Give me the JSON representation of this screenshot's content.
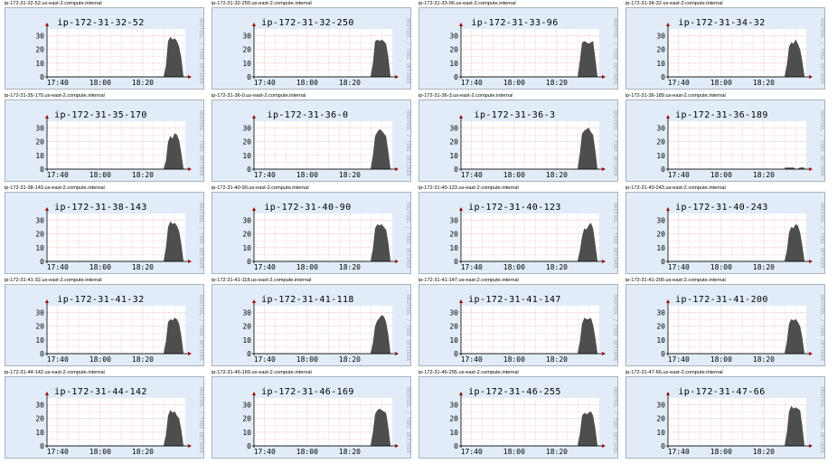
{
  "colors": {
    "background": "#e1ecf8",
    "plot": "#ffffff",
    "grid": "#f7b4b4",
    "area": "#4e4e4e",
    "axis": "#a00000"
  },
  "watermark": "RRDTOOL / TOBI OETIKER",
  "graphs": [
    {
      "caption": "ip-172-31-32-52.us-east-2.compute.internal",
      "title": "ip-172-31-32-52"
    },
    {
      "caption": "ip-172-31-32-250.us-east-2.compute.internal",
      "title": "ip-172-31-32-250"
    },
    {
      "caption": "ip-172-31-33-96.us-east-2.compute.internal",
      "title": "ip-172-31-33-96"
    },
    {
      "caption": "ip-172-31-34-32.us-east-2.compute.internal",
      "title": "ip-172-31-34-32"
    },
    {
      "caption": "ip-172-31-35-170.us-east-2.compute.internal",
      "title": "ip-172-31-35-170"
    },
    {
      "caption": "ip-172-31-36-0.us-east-2.compute.internal",
      "title": "ip-172-31-36-0"
    },
    {
      "caption": "ip-172-31-36-3.us-east-2.compute.internal",
      "title": "ip-172-31-36-3"
    },
    {
      "caption": "ip-172-31-36-189.us-east-2.compute.internal",
      "title": "ip-172-31-36-189"
    },
    {
      "caption": "ip-172-31-38-143.us-east-2.compute.internal",
      "title": "ip-172-31-38-143"
    },
    {
      "caption": "ip-172-31-40-90.us-east-2.compute.internal",
      "title": "ip-172-31-40-90"
    },
    {
      "caption": "ip-172-31-40-123.us-east-2.compute.internal",
      "title": "ip-172-31-40-123"
    },
    {
      "caption": "ip-172-31-40-243.us-east-2.compute.internal",
      "title": "ip-172-31-40-243"
    },
    {
      "caption": "ip-172-31-41-32.us-east-2.compute.internal",
      "title": "ip-172-31-41-32"
    },
    {
      "caption": "ip-172-31-41-118.us-east-2.compute.internal",
      "title": "ip-172-31-41-118"
    },
    {
      "caption": "ip-172-31-41-147.us-east-2.compute.internal",
      "title": "ip-172-31-41-147"
    },
    {
      "caption": "ip-172-31-41-200.us-east-2.compute.internal",
      "title": "ip-172-31-41-200"
    },
    {
      "caption": "ip-172-31-44-142.us-east-2.compute.internal",
      "title": "ip-172-31-44-142"
    },
    {
      "caption": "ip-172-31-46-169.us-east-2.compute.internal",
      "title": "ip-172-31-46-169"
    },
    {
      "caption": "ip-172-31-46-255.us-east-2.compute.internal",
      "title": "ip-172-31-46-255"
    },
    {
      "caption": "ip-172-31-47-66.us-east-2.compute.internal",
      "title": "ip-172-31-47-66"
    }
  ],
  "chart_data": [
    {
      "type": "area",
      "title": "ip-172-31-32-52",
      "x": [
        "18:30",
        "18:31",
        "18:32",
        "18:33",
        "18:34",
        "18:35",
        "18:36",
        "18:37",
        "18:38",
        "18:39"
      ],
      "y": [
        1,
        8,
        26,
        29,
        27,
        28,
        26,
        22,
        14,
        1
      ],
      "x_ticks": [
        "17:40",
        "18:00",
        "18:20"
      ],
      "y_ticks": [
        0,
        10,
        20,
        30
      ],
      "ylim": [
        0,
        35
      ]
    },
    {
      "type": "area",
      "title": "ip-172-31-32-250",
      "x": [
        "18:30",
        "18:31",
        "18:32",
        "18:33",
        "18:34",
        "18:35",
        "18:36",
        "18:37",
        "18:38",
        "18:39"
      ],
      "y": [
        1,
        10,
        26,
        27,
        26,
        27,
        26,
        24,
        15,
        1
      ],
      "x_ticks": [
        "17:40",
        "18:00",
        "18:20"
      ],
      "y_ticks": [
        0,
        10,
        20,
        30
      ],
      "ylim": [
        0,
        35
      ]
    },
    {
      "type": "area",
      "title": "ip-172-31-33-96",
      "x": [
        "18:30",
        "18:31",
        "18:32",
        "18:33",
        "18:34",
        "18:35",
        "18:36",
        "18:37",
        "18:38",
        "18:39"
      ],
      "y": [
        1,
        12,
        25,
        26,
        25,
        24,
        25,
        26,
        14,
        1
      ],
      "x_ticks": [
        "17:40",
        "18:00",
        "18:20"
      ],
      "y_ticks": [
        0,
        10,
        20,
        30
      ],
      "ylim": [
        0,
        35
      ]
    },
    {
      "type": "area",
      "title": "ip-172-31-34-32",
      "x": [
        "18:30",
        "18:31",
        "18:32",
        "18:33",
        "18:34",
        "18:35",
        "18:36",
        "18:37",
        "18:38",
        "18:39"
      ],
      "y": [
        1,
        9,
        22,
        25,
        24,
        27,
        24,
        20,
        12,
        1
      ],
      "x_ticks": [
        "17:40",
        "18:00",
        "18:20"
      ],
      "y_ticks": [
        0,
        10,
        20,
        30
      ],
      "ylim": [
        0,
        35
      ]
    },
    {
      "type": "area",
      "title": "ip-172-31-35-170",
      "x": [
        "18:30",
        "18:31",
        "18:32",
        "18:33",
        "18:34",
        "18:35",
        "18:36",
        "18:37",
        "18:38",
        "18:39"
      ],
      "y": [
        1,
        6,
        20,
        24,
        22,
        26,
        25,
        21,
        12,
        1
      ],
      "x_ticks": [
        "17:40",
        "18:00",
        "18:20"
      ],
      "y_ticks": [
        0,
        10,
        20,
        30
      ],
      "ylim": [
        0,
        35
      ]
    },
    {
      "type": "area",
      "title": "ip-172-31-36-0",
      "x": [
        "18:30",
        "18:31",
        "18:32",
        "18:33",
        "18:34",
        "18:35",
        "18:36",
        "18:37",
        "18:38",
        "18:39"
      ],
      "y": [
        1,
        10,
        24,
        27,
        29,
        28,
        26,
        24,
        13,
        1
      ],
      "x_ticks": [
        "17:40",
        "18:00",
        "18:20"
      ],
      "y_ticks": [
        0,
        10,
        20,
        30
      ],
      "ylim": [
        0,
        35
      ]
    },
    {
      "type": "area",
      "title": "ip-172-31-36-3",
      "x": [
        "18:30",
        "18:31",
        "18:32",
        "18:33",
        "18:34",
        "18:35",
        "18:36",
        "18:37",
        "18:38",
        "18:39"
      ],
      "y": [
        1,
        12,
        26,
        28,
        29,
        30,
        27,
        25,
        14,
        1
      ],
      "x_ticks": [
        "17:40",
        "18:00",
        "18:20"
      ],
      "y_ticks": [
        0,
        10,
        20,
        30
      ],
      "ylim": [
        0,
        35
      ]
    },
    {
      "type": "area",
      "title": "ip-172-31-36-189",
      "x": [
        "18:30",
        "18:31",
        "18:32",
        "18:33",
        "18:34",
        "18:35",
        "18:36",
        "18:37",
        "18:38",
        "18:39"
      ],
      "y": [
        1,
        1,
        1,
        1,
        1,
        0,
        0,
        1,
        1,
        1
      ],
      "x_ticks": [
        "17:40",
        "18:00",
        "18:20"
      ],
      "y_ticks": [
        0,
        10,
        20,
        30
      ],
      "ylim": [
        0,
        35
      ]
    },
    {
      "type": "area",
      "title": "ip-172-31-38-143",
      "x": [
        "18:30",
        "18:31",
        "18:32",
        "18:33",
        "18:34",
        "18:35",
        "18:36",
        "18:37",
        "18:38",
        "18:39"
      ],
      "y": [
        1,
        10,
        25,
        29,
        27,
        28,
        26,
        22,
        13,
        1
      ],
      "x_ticks": [
        "17:40",
        "18:00",
        "18:20"
      ],
      "y_ticks": [
        0,
        10,
        20,
        30
      ],
      "ylim": [
        0,
        35
      ]
    },
    {
      "type": "area",
      "title": "ip-172-31-40-90",
      "x": [
        "18:30",
        "18:31",
        "18:32",
        "18:33",
        "18:34",
        "18:35",
        "18:36",
        "18:37",
        "18:38",
        "18:39"
      ],
      "y": [
        1,
        9,
        24,
        27,
        26,
        27,
        25,
        23,
        14,
        1
      ],
      "x_ticks": [
        "17:40",
        "18:00",
        "18:20"
      ],
      "y_ticks": [
        0,
        10,
        20,
        30
      ],
      "ylim": [
        0,
        35
      ]
    },
    {
      "type": "area",
      "title": "ip-172-31-40-123",
      "x": [
        "18:30",
        "18:31",
        "18:32",
        "18:33",
        "18:34",
        "18:35",
        "18:36",
        "18:37",
        "18:38",
        "18:39"
      ],
      "y": [
        1,
        8,
        18,
        24,
        23,
        26,
        28,
        24,
        13,
        1
      ],
      "x_ticks": [
        "17:40",
        "18:00",
        "18:20"
      ],
      "y_ticks": [
        0,
        10,
        20,
        30
      ],
      "ylim": [
        0,
        35
      ]
    },
    {
      "type": "area",
      "title": "ip-172-31-40-243",
      "x": [
        "18:30",
        "18:31",
        "18:32",
        "18:33",
        "18:34",
        "18:35",
        "18:36",
        "18:37",
        "18:38",
        "18:39"
      ],
      "y": [
        1,
        8,
        21,
        25,
        24,
        27,
        26,
        21,
        12,
        1
      ],
      "x_ticks": [
        "17:40",
        "18:00",
        "18:20"
      ],
      "y_ticks": [
        0,
        10,
        20,
        30
      ],
      "ylim": [
        0,
        35
      ]
    },
    {
      "type": "area",
      "title": "ip-172-31-41-32",
      "x": [
        "18:30",
        "18:31",
        "18:32",
        "18:33",
        "18:34",
        "18:35",
        "18:36",
        "18:37",
        "18:38",
        "18:39"
      ],
      "y": [
        1,
        9,
        23,
        25,
        24,
        26,
        25,
        22,
        13,
        1
      ],
      "x_ticks": [
        "17:40",
        "18:00",
        "18:20"
      ],
      "y_ticks": [
        0,
        10,
        20,
        30
      ],
      "ylim": [
        0,
        35
      ]
    },
    {
      "type": "area",
      "title": "ip-172-31-41-118",
      "x": [
        "18:30",
        "18:31",
        "18:32",
        "18:33",
        "18:34",
        "18:35",
        "18:36",
        "18:37",
        "18:38",
        "18:39"
      ],
      "y": [
        1,
        8,
        20,
        24,
        26,
        28,
        27,
        23,
        14,
        1
      ],
      "x_ticks": [
        "17:40",
        "18:00",
        "18:20"
      ],
      "y_ticks": [
        0,
        10,
        20,
        30
      ],
      "ylim": [
        0,
        35
      ]
    },
    {
      "type": "area",
      "title": "ip-172-31-41-147",
      "x": [
        "18:30",
        "18:31",
        "18:32",
        "18:33",
        "18:34",
        "18:35",
        "18:36",
        "18:37",
        "18:38",
        "18:39"
      ],
      "y": [
        1,
        9,
        22,
        26,
        25,
        25,
        26,
        21,
        12,
        1
      ],
      "x_ticks": [
        "17:40",
        "18:00",
        "18:20"
      ],
      "y_ticks": [
        0,
        10,
        20,
        30
      ],
      "ylim": [
        0,
        35
      ]
    },
    {
      "type": "area",
      "title": "ip-172-31-41-200",
      "x": [
        "18:30",
        "18:31",
        "18:32",
        "18:33",
        "18:34",
        "18:35",
        "18:36",
        "18:37",
        "18:38",
        "18:39"
      ],
      "y": [
        1,
        9,
        22,
        25,
        24,
        25,
        23,
        20,
        12,
        1
      ],
      "x_ticks": [
        "17:40",
        "18:00",
        "18:20"
      ],
      "y_ticks": [
        0,
        10,
        20,
        30
      ],
      "ylim": [
        0,
        35
      ]
    },
    {
      "type": "area",
      "title": "ip-172-31-44-142",
      "x": [
        "18:30",
        "18:31",
        "18:32",
        "18:33",
        "18:34",
        "18:35",
        "18:36",
        "18:37",
        "18:38",
        "18:39"
      ],
      "y": [
        1,
        8,
        22,
        26,
        24,
        25,
        22,
        20,
        12,
        1
      ],
      "x_ticks": [
        "17:40",
        "18:00",
        "18:20"
      ],
      "y_ticks": [
        0,
        10,
        20,
        30
      ],
      "ylim": [
        0,
        35
      ]
    },
    {
      "type": "area",
      "title": "ip-172-31-46-169",
      "x": [
        "18:30",
        "18:31",
        "18:32",
        "18:33",
        "18:34",
        "18:35",
        "18:36",
        "18:37",
        "18:38",
        "18:39"
      ],
      "y": [
        1,
        10,
        23,
        26,
        27,
        26,
        25,
        24,
        14,
        1
      ],
      "x_ticks": [
        "17:40",
        "18:00",
        "18:20"
      ],
      "y_ticks": [
        0,
        10,
        20,
        30
      ],
      "ylim": [
        0,
        35
      ]
    },
    {
      "type": "area",
      "title": "ip-172-31-46-255",
      "x": [
        "18:30",
        "18:31",
        "18:32",
        "18:33",
        "18:34",
        "18:35",
        "18:36",
        "18:37",
        "18:38",
        "18:39"
      ],
      "y": [
        1,
        9,
        22,
        24,
        23,
        24,
        25,
        22,
        13,
        1
      ],
      "x_ticks": [
        "17:40",
        "18:00",
        "18:20"
      ],
      "y_ticks": [
        0,
        10,
        20,
        30
      ],
      "ylim": [
        0,
        35
      ]
    },
    {
      "type": "area",
      "title": "ip-172-31-47-66",
      "x": [
        "18:30",
        "18:31",
        "18:32",
        "18:33",
        "18:34",
        "18:35",
        "18:36",
        "18:37",
        "18:38",
        "18:39"
      ],
      "y": [
        1,
        10,
        25,
        29,
        27,
        28,
        27,
        26,
        15,
        1
      ],
      "x_ticks": [
        "17:40",
        "18:00",
        "18:20"
      ],
      "y_ticks": [
        0,
        10,
        20,
        30
      ],
      "ylim": [
        0,
        35
      ]
    }
  ]
}
